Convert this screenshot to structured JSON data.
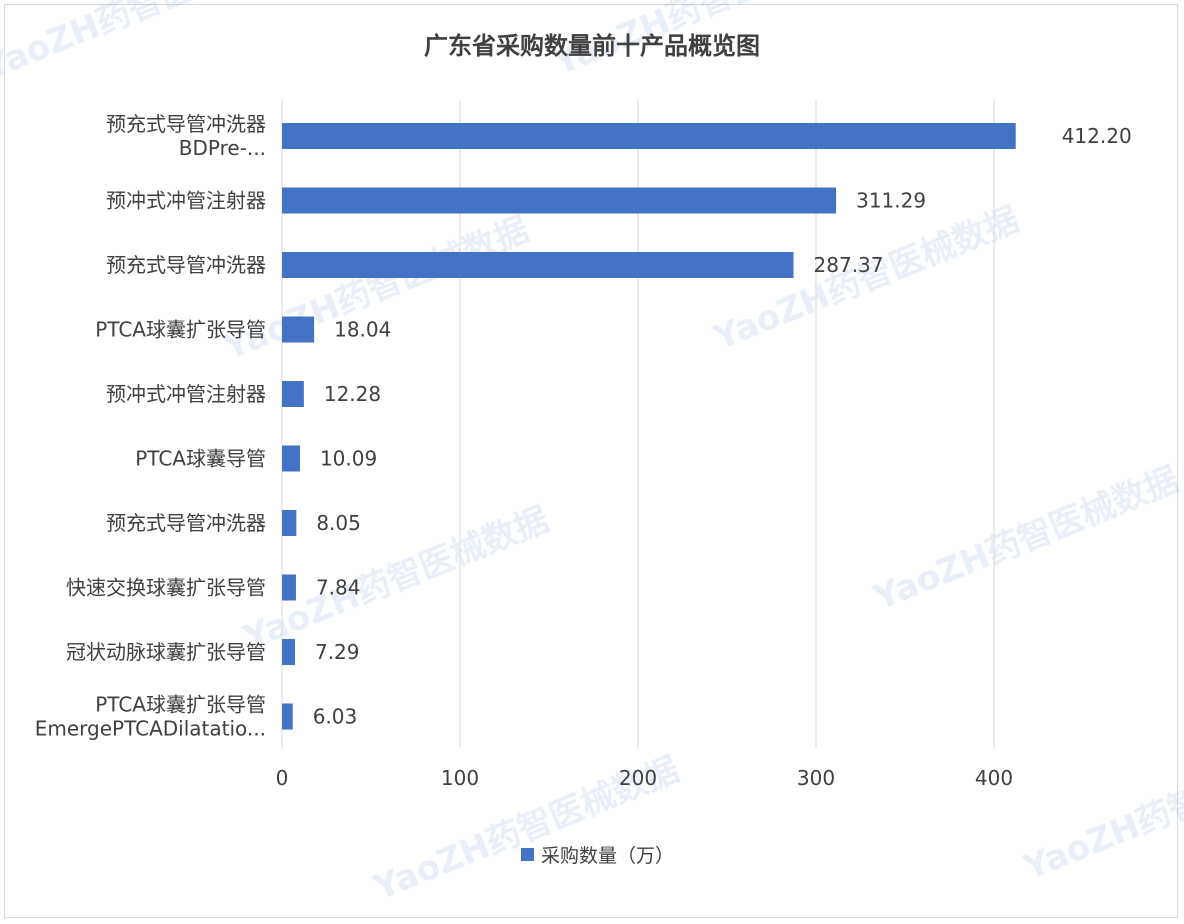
{
  "chart_data": {
    "type": "bar",
    "orientation": "horizontal",
    "title": "广东省采购数量前十产品概览图",
    "categories": [
      [
        "预充式导管冲洗器",
        "BDPre-..."
      ],
      [
        "预冲式冲管注射器"
      ],
      [
        "预充式导管冲洗器"
      ],
      [
        "PTCA球囊扩张导管"
      ],
      [
        "预冲式冲管注射器"
      ],
      [
        "PTCA球囊导管"
      ],
      [
        "预充式导管冲洗器"
      ],
      [
        "快速交换球囊扩张导管"
      ],
      [
        "冠状动脉球囊扩张导管"
      ],
      [
        "PTCA球囊扩张导管",
        "EmergePTCADilatatio..."
      ]
    ],
    "series": [
      {
        "name": "采购数量（万）",
        "values": [
          412.2,
          311.29,
          287.37,
          18.04,
          12.28,
          10.09,
          8.05,
          7.84,
          7.29,
          6.03
        ],
        "labels": [
          "412.20",
          "311.29",
          "287.37",
          "18.04",
          "12.28",
          "10.09",
          "8.05",
          "7.84",
          "7.29",
          "6.03"
        ],
        "color": "#4472c4"
      }
    ],
    "xticks": [
      0,
      100,
      200,
      300,
      400
    ],
    "xlim": [
      0,
      450
    ],
    "grid": true,
    "legend_position": "bottom"
  },
  "watermark": {
    "text": "YaoZH药智医械数据"
  }
}
